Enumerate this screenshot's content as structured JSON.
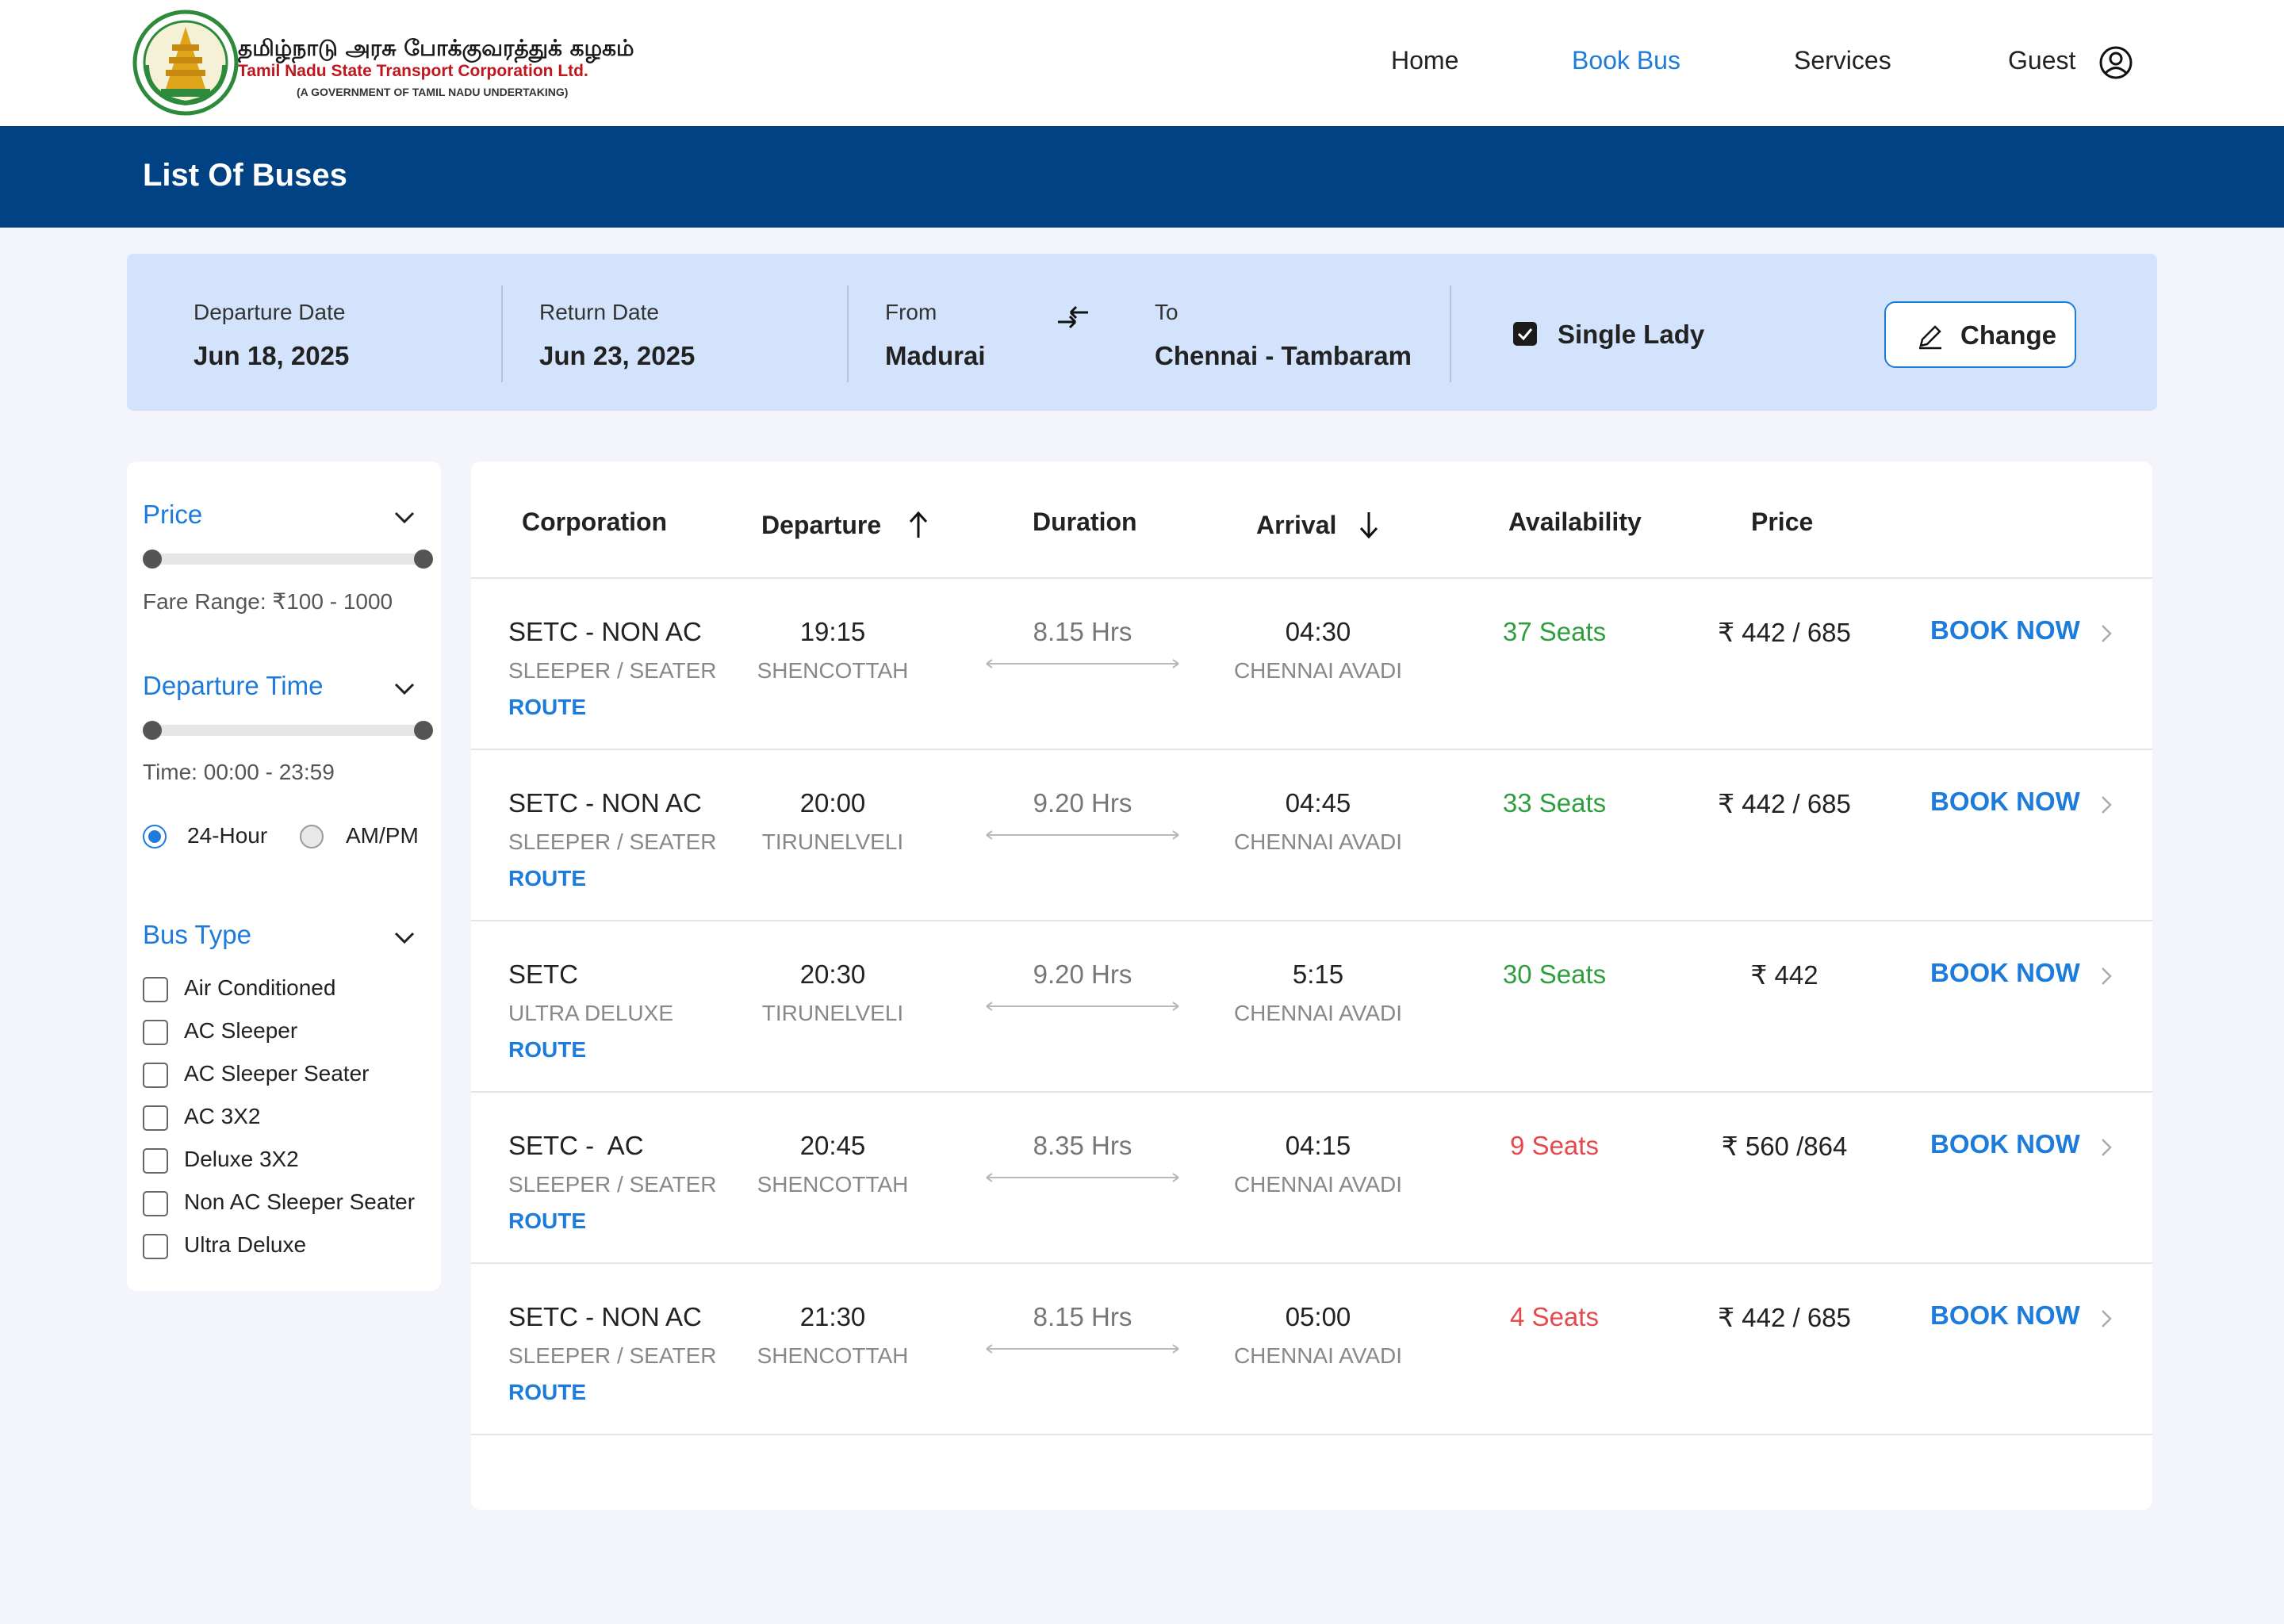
{
  "brand": {
    "tamil_name": "தமிழ்நாடு அரசு போக்குவரத்துக் கழகம்",
    "english_name": "Tamil Nadu State Transport Corporation Ltd.",
    "subtitle": "(A GOVERNMENT OF TAMIL NADU UNDERTAKING)"
  },
  "nav": {
    "home": "Home",
    "book_bus": "Book Bus",
    "services": "Services",
    "guest": "Guest",
    "active": "Book Bus"
  },
  "page": {
    "title": "List Of Buses"
  },
  "search": {
    "departure_label": "Departure Date",
    "departure_value": "Jun 18, 2025",
    "return_label": "Return Date",
    "return_value": "Jun 23, 2025",
    "from_label": "From",
    "from_value": "Madurai",
    "to_label": "To",
    "to_value": "Chennai - Tambaram",
    "single_lady_label": "Single Lady",
    "single_lady_checked": true,
    "change_label": "Change"
  },
  "filters": {
    "price_label": "Price",
    "fare_range": "Fare Range:  ₹100 - 1000",
    "departure_time_label": "Departure Time",
    "time_range": "Time: 00:00 - 23:59",
    "format_24h": "24-Hour",
    "format_ampm": "AM/PM",
    "format_selected": "24-Hour",
    "bus_type_label": "Bus Type",
    "bus_types": [
      "Air Conditioned",
      "AC Sleeper",
      "AC Sleeper Seater",
      "AC 3X2",
      "Deluxe 3X2",
      "Non AC Sleeper Seater",
      "Ultra Deluxe"
    ]
  },
  "table": {
    "headers": {
      "corporation": "Corporation",
      "departure": "Departure",
      "duration": "Duration",
      "arrival": "Arrival",
      "availability": "Availability",
      "price": "Price"
    },
    "route_label": "ROUTE",
    "book_label": "BOOK NOW",
    "rows": [
      {
        "name": "SETC - NON AC",
        "type": "SLEEPER / SEATER",
        "dep_time": "19:15",
        "dep_place": "SHENCOTTAH",
        "duration": "8.15 Hrs",
        "arr_time": "04:30",
        "arr_place": "CHENNAI AVADI",
        "seats": "37 Seats",
        "seats_color": "#2e9e3f",
        "price": "₹ 442 / 685"
      },
      {
        "name": "SETC - NON AC",
        "type": "SLEEPER / SEATER",
        "dep_time": "20:00",
        "dep_place": "TIRUNELVELI",
        "duration": "9.20 Hrs",
        "arr_time": "04:45",
        "arr_place": "CHENNAI AVADI",
        "seats": "33 Seats",
        "seats_color": "#2e9e3f",
        "price": "₹ 442 / 685"
      },
      {
        "name": "SETC",
        "type": "ULTRA DELUXE",
        "dep_time": "20:30",
        "dep_place": "TIRUNELVELI",
        "duration": "9.20 Hrs",
        "arr_time": "5:15",
        "arr_place": "CHENNAI AVADI",
        "seats": "30 Seats",
        "seats_color": "#2e9e3f",
        "price": "₹ 442"
      },
      {
        "name": "SETC -  AC",
        "type": "SLEEPER / SEATER",
        "dep_time": "20:45",
        "dep_place": "SHENCOTTAH",
        "duration": "8.35 Hrs",
        "arr_time": "04:15",
        "arr_place": "CHENNAI AVADI",
        "seats": "9 Seats",
        "seats_color": "#e5484d",
        "price": "₹ 560 /864"
      },
      {
        "name": "SETC - NON AC",
        "type": "SLEEPER / SEATER",
        "dep_time": "21:30",
        "dep_place": "SHENCOTTAH",
        "duration": "8.15 Hrs",
        "arr_time": "05:00",
        "arr_place": "CHENNAI AVADI",
        "seats": "4 Seats",
        "seats_color": "#e5484d",
        "price": "₹ 442 / 685"
      }
    ]
  },
  "colors": {
    "accent": "#1c7bdb",
    "band": "#004283",
    "panel": "#d2e3fb",
    "seats_high": "#2e9e3f",
    "seats_low": "#e5484d"
  }
}
